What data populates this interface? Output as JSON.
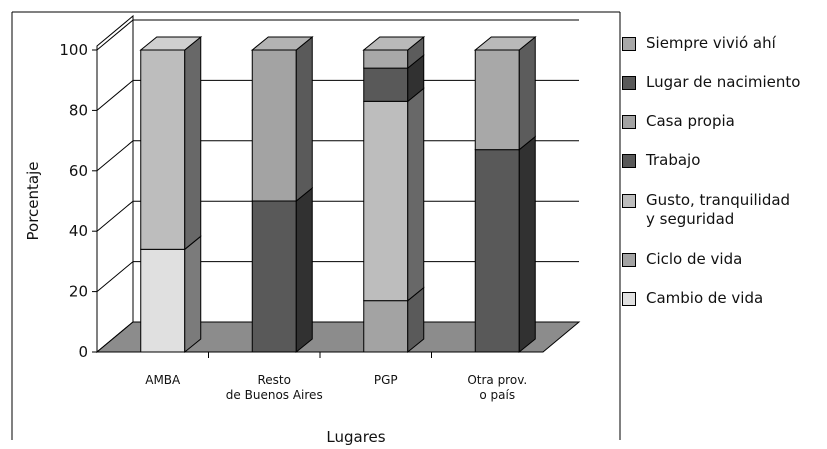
{
  "chart_data": {
    "type": "bar",
    "stacked": true,
    "three_d": true,
    "xlabel": "Lugares",
    "ylabel": "Porcentaje",
    "ylim": [
      0,
      100
    ],
    "yticks": [
      "0",
      "20",
      "40",
      "60",
      "80",
      "100"
    ],
    "categories": [
      "AMBA",
      "Resto\nde Buenos Aires",
      "PGP",
      "Otra prov.\no país"
    ],
    "series": [
      {
        "name": "Cambio de vida",
        "values": [
          34,
          0,
          0,
          0
        ],
        "color": "#e0e0e0"
      },
      {
        "name": "Ciclo de vida",
        "values": [
          0,
          0,
          17,
          0
        ],
        "color": "#a3a3a3"
      },
      {
        "name": "Gusto, tranquilidad\ny seguridad",
        "values": [
          66,
          0,
          66,
          0
        ],
        "color": "#bdbdbd"
      },
      {
        "name": "Trabajo",
        "values": [
          0,
          50,
          0,
          67
        ],
        "color": "#595959"
      },
      {
        "name": "Casa propia",
        "values": [
          0,
          50,
          0,
          0
        ],
        "color": "#a3a3a3"
      },
      {
        "name": "Lugar de nacimiento",
        "values": [
          0,
          0,
          11,
          0
        ],
        "color": "#595959"
      },
      {
        "name": "Siempre vivió ahí",
        "values": [
          0,
          0,
          6,
          33
        ],
        "color": "#a8a8a8"
      }
    ],
    "legend_position": "right",
    "legend_order": [
      "Siempre vivió ahí",
      "Lugar de nacimiento",
      "Casa propia",
      "Trabajo",
      "Gusto, tranquilidad\ny seguridad",
      "Ciclo de vida",
      "Cambio de vida"
    ],
    "grid": true,
    "colors": {
      "floor": "#8c8c8c",
      "grid": "#000000",
      "wall": "#ffffff"
    }
  }
}
